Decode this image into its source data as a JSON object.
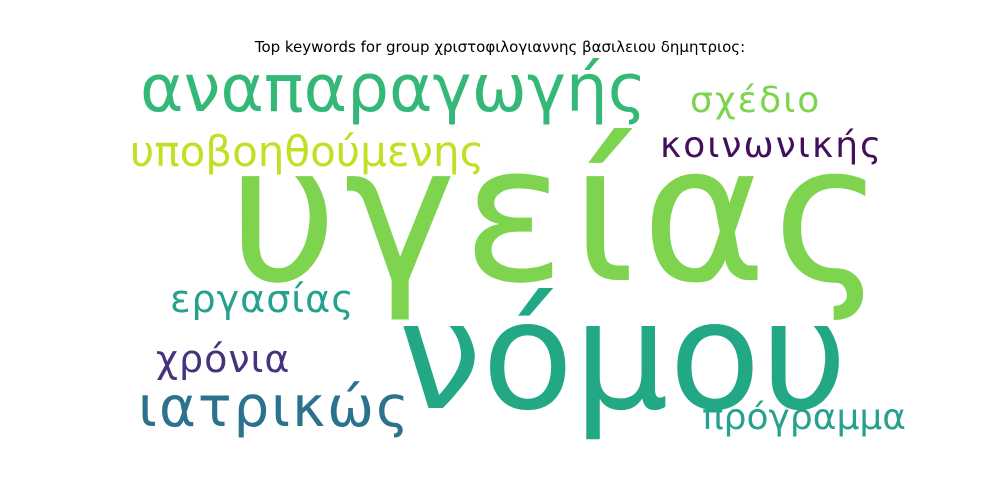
{
  "title": "Top keywords for group χριστοφιλογιαννης βασιλειου δημητριος:",
  "words": {
    "ygeias": {
      "text": "υγείας",
      "color": "#7ed34f"
    },
    "nomou": {
      "text": "νόμου",
      "color": "#22a884"
    },
    "anaparag": {
      "text": "αναπαραγωγής",
      "color": "#34b878"
    },
    "ypovoh": {
      "text": "υποβοηθούμενης",
      "color": "#c2df23"
    },
    "sxedio": {
      "text": "σχέδιο",
      "color": "#7ed34f"
    },
    "koinon": {
      "text": "κοινωνικής",
      "color": "#440f5a"
    },
    "ergasias": {
      "text": "εργασίας",
      "color": "#25a18e"
    },
    "xronia": {
      "text": "χρόνια",
      "color": "#46337e"
    },
    "iatrikos": {
      "text": "ιατρικώς",
      "color": "#2c728e"
    },
    "progr": {
      "text": "πρόγραμμα",
      "color": "#25a18e"
    }
  }
}
